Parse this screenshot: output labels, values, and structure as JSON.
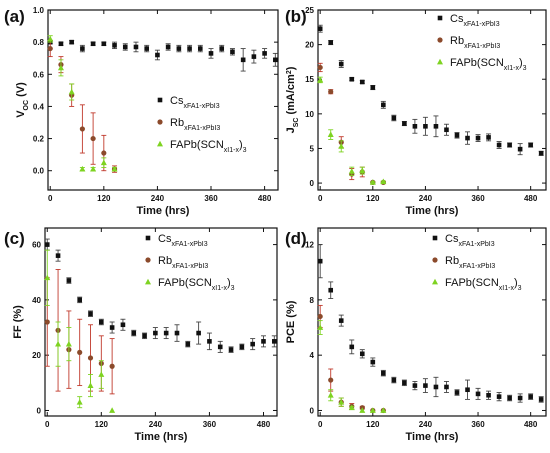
{
  "colors": {
    "cs": "#111111",
    "rb": "#8b4a2b",
    "fa": "#7ed321",
    "error_cs": "#444444",
    "error_rb": "#c0392b",
    "error_fa": "#7ed321"
  },
  "legend_labels": {
    "cs": "Cs_xFA_1-xPbI_3",
    "rb": "Rb_xFA_1-xPbI_3",
    "fa": "FAPb(SCN_xI_1-x)_3"
  },
  "chart_data": [
    {
      "type": "scatter",
      "panel": "(a)",
      "xlabel": "Time (hrs)",
      "ylabel": "V_OC (V)",
      "xlim": [
        -5,
        510
      ],
      "ylim": [
        -0.12,
        1.0
      ],
      "xticks": [
        0,
        120,
        240,
        360,
        480
      ],
      "yticks": [
        0.0,
        0.2,
        0.4,
        0.6,
        0.8,
        1.0
      ],
      "ytick_labels": [
        "0.0",
        "0.2",
        "0.4",
        "0.6",
        "0.8",
        "1.0"
      ],
      "legend_position": "right",
      "series": [
        {
          "key": "cs",
          "marker": "square",
          "x": [
            0,
            24,
            48,
            72,
            96,
            120,
            144,
            168,
            192,
            216,
            240,
            264,
            288,
            312,
            336,
            360,
            384,
            408,
            432,
            456,
            480,
            504
          ],
          "y": [
            0.8,
            0.79,
            0.8,
            0.76,
            0.79,
            0.79,
            0.78,
            0.77,
            0.77,
            0.76,
            0.72,
            0.77,
            0.76,
            0.76,
            0.76,
            0.73,
            0.76,
            0.74,
            0.69,
            0.71,
            0.73,
            0.69
          ],
          "err": [
            0.01,
            0.01,
            0.01,
            0.02,
            0.01,
            0.01,
            0.02,
            0.02,
            0.03,
            0.02,
            0.03,
            0.02,
            0.02,
            0.02,
            0.02,
            0.03,
            0.02,
            0.02,
            0.07,
            0.04,
            0.03,
            0.04
          ]
        },
        {
          "key": "rb",
          "marker": "circle",
          "x": [
            0,
            24,
            48,
            72,
            96,
            120,
            144
          ],
          "y": [
            0.76,
            0.66,
            0.47,
            0.26,
            0.2,
            0.11,
            0.01
          ],
          "err": [
            0.05,
            0.05,
            0.07,
            0.15,
            0.16,
            0.11,
            0.02
          ]
        },
        {
          "key": "fa",
          "marker": "triangle",
          "x": [
            0,
            24,
            48,
            72,
            96,
            120,
            144
          ],
          "y": [
            0.82,
            0.64,
            0.49,
            0.01,
            0.01,
            0.05,
            0.01
          ],
          "err": [
            0.02,
            0.05,
            0.05,
            0.01,
            0.01,
            0.03,
            0.01
          ]
        }
      ]
    },
    {
      "type": "scatter",
      "panel": "(b)",
      "xlabel": "Time (hrs)",
      "ylabel": "J_SC (mA/cm^2)",
      "xlim": [
        -5,
        515
      ],
      "ylim": [
        -1,
        25
      ],
      "xticks": [
        0,
        120,
        240,
        360,
        480
      ],
      "yticks": [
        0,
        5,
        10,
        15,
        20,
        25
      ],
      "ytick_labels": [
        "0",
        "5",
        "10",
        "15",
        "20",
        "25"
      ],
      "legend_position": "top-right",
      "series": [
        {
          "key": "cs",
          "marker": "square",
          "x": [
            0,
            24,
            48,
            72,
            96,
            120,
            144,
            168,
            192,
            216,
            240,
            264,
            288,
            312,
            336,
            360,
            384,
            408,
            432,
            456,
            480,
            504
          ],
          "y": [
            22.3,
            20.3,
            17.2,
            15.0,
            14.6,
            13.8,
            11.3,
            9.4,
            8.6,
            8.2,
            8.2,
            8.2,
            7.7,
            6.9,
            6.5,
            6.5,
            6.6,
            5.5,
            5.5,
            4.9,
            5.5,
            4.3
          ],
          "err": [
            0.5,
            0.3,
            0.5,
            0.2,
            0.2,
            0.3,
            0.5,
            0.4,
            0.3,
            1.0,
            1.3,
            1.5,
            0.8,
            0.4,
            0.9,
            0.5,
            0.5,
            0.5,
            0.3,
            0.8,
            0.3,
            0.3
          ]
        },
        {
          "key": "rb",
          "marker": "circle",
          "x": [
            0,
            24,
            48,
            72,
            96,
            120,
            144
          ],
          "y": [
            16.7,
            13.2,
            5.9,
            1.3,
            1.6,
            0.1,
            0.1
          ],
          "err": [
            0.6,
            0.3,
            0.8,
            0.8,
            0.7,
            0.1,
            0.1
          ]
        },
        {
          "key": "fa",
          "marker": "triangle",
          "x": [
            0,
            24,
            48,
            72,
            96,
            120,
            144
          ],
          "y": [
            14.9,
            7.0,
            5.3,
            1.7,
            1.8,
            0.1,
            0.2
          ],
          "err": [
            0.4,
            0.7,
            0.8,
            0.6,
            0.5,
            0.1,
            0.1
          ]
        }
      ]
    },
    {
      "type": "scatter",
      "panel": "(c)",
      "xlabel": "Time (hrs)",
      "ylabel": "FF (%)",
      "xlim": [
        -5,
        510
      ],
      "ylim": [
        -2,
        66
      ],
      "xticks": [
        0,
        120,
        240,
        360,
        480
      ],
      "yticks": [
        0,
        20,
        40,
        60
      ],
      "ytick_labels": [
        "0",
        "20",
        "40",
        "60"
      ],
      "legend_position": "top-right",
      "series": [
        {
          "key": "cs",
          "marker": "square",
          "x": [
            0,
            24,
            48,
            72,
            96,
            120,
            144,
            168,
            192,
            216,
            240,
            264,
            288,
            312,
            336,
            360,
            384,
            408,
            432,
            456,
            480,
            504
          ],
          "y": [
            60,
            56,
            47,
            40,
            35,
            32,
            30,
            31,
            28,
            27,
            28,
            28,
            28,
            24,
            28,
            25,
            23,
            22,
            23,
            24,
            25,
            25
          ],
          "err": [
            2,
            2,
            1,
            1,
            1,
            1,
            2,
            2,
            1,
            1,
            2,
            2,
            3,
            1,
            4,
            3,
            2,
            1,
            1,
            2,
            2,
            2
          ]
        },
        {
          "key": "rb",
          "marker": "circle",
          "x": [
            0,
            24,
            48,
            72,
            96,
            120,
            144
          ],
          "y": [
            32,
            29,
            22,
            21,
            19,
            17,
            16
          ],
          "err": [
            16,
            22,
            14,
            12,
            12,
            10,
            10
          ]
        },
        {
          "key": "fa",
          "marker": "triangle",
          "x": [
            0,
            24,
            48,
            72,
            96,
            120,
            144
          ],
          "y": [
            48,
            24,
            24,
            3,
            9,
            13,
            0
          ],
          "err": [
            10,
            8,
            6,
            2,
            4,
            5,
            0
          ]
        }
      ]
    },
    {
      "type": "scatter",
      "panel": "(d)",
      "xlabel": "Time (hrs)",
      "ylabel": "PCE (%)",
      "xlim": [
        -5,
        515
      ],
      "ylim": [
        -0.4,
        13.2
      ],
      "xticks": [
        0,
        120,
        240,
        360,
        480
      ],
      "yticks": [
        0,
        4,
        8,
        12
      ],
      "ytick_labels": [
        "0",
        "4",
        "8",
        "12"
      ],
      "legend_position": "top-right",
      "series": [
        {
          "key": "cs",
          "marker": "square",
          "x": [
            0,
            24,
            48,
            72,
            96,
            120,
            144,
            168,
            192,
            216,
            240,
            264,
            288,
            312,
            336,
            360,
            384,
            408,
            432,
            456,
            480,
            504
          ],
          "y": [
            10.8,
            8.7,
            6.5,
            4.6,
            4.1,
            3.5,
            2.7,
            2.2,
            2.0,
            1.8,
            1.8,
            1.7,
            1.7,
            1.3,
            1.5,
            1.2,
            1.1,
            1.0,
            0.9,
            0.9,
            1.0,
            0.8
          ],
          "err": [
            1.2,
            0.6,
            0.4,
            0.5,
            0.3,
            0.3,
            0.2,
            0.2,
            0.2,
            0.3,
            0.5,
            0.7,
            0.4,
            0.2,
            0.7,
            0.4,
            0.3,
            0.3,
            0.2,
            0.3,
            0.2,
            0.2
          ]
        },
        {
          "key": "rb",
          "marker": "circle",
          "x": [
            0,
            24,
            48,
            72,
            96,
            120,
            144
          ],
          "y": [
            6.8,
            2.2,
            0.6,
            0.3,
            0.2,
            0.0,
            0.0
          ],
          "err": [
            0.8,
            0.8,
            0.3,
            0.2,
            0.1,
            0.0,
            0.0
          ]
        },
        {
          "key": "fa",
          "marker": "triangle",
          "x": [
            0,
            24,
            48,
            72,
            96,
            120,
            144
          ],
          "y": [
            6.0,
            1.1,
            0.6,
            0.2,
            0.0,
            0.0,
            0.0
          ],
          "err": [
            0.5,
            0.4,
            0.3,
            0.1,
            0.0,
            0.0,
            0.0
          ]
        }
      ]
    }
  ]
}
